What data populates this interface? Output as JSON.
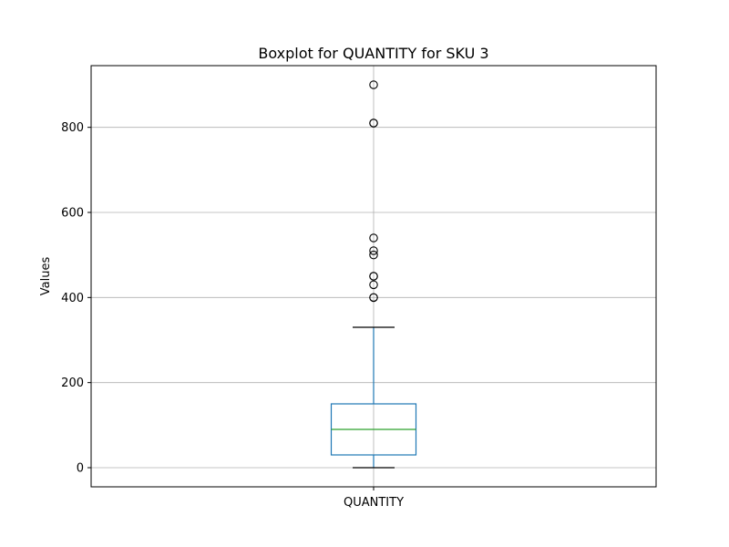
{
  "chart_data": {
    "type": "boxplot",
    "title": "Boxplot for QUANTITY for SKU 3",
    "ylabel": "Values",
    "xlabel": "",
    "categories": [
      "QUANTITY"
    ],
    "ylim": [
      -45,
      945
    ],
    "yticks": [
      0,
      200,
      400,
      600,
      800
    ],
    "grid": true,
    "box": {
      "whisker_low": 0,
      "q1": 30,
      "median": 90,
      "q3": 150,
      "whisker_high": 330
    },
    "outliers": [
      400,
      400,
      430,
      450,
      450,
      500,
      510,
      540,
      810,
      810,
      900
    ],
    "colors": {
      "box": "#1f77b4",
      "median": "#2ca02c",
      "whisker_cap": "#000000",
      "grid": "#b0b0b0",
      "outlier": "#000000"
    }
  }
}
